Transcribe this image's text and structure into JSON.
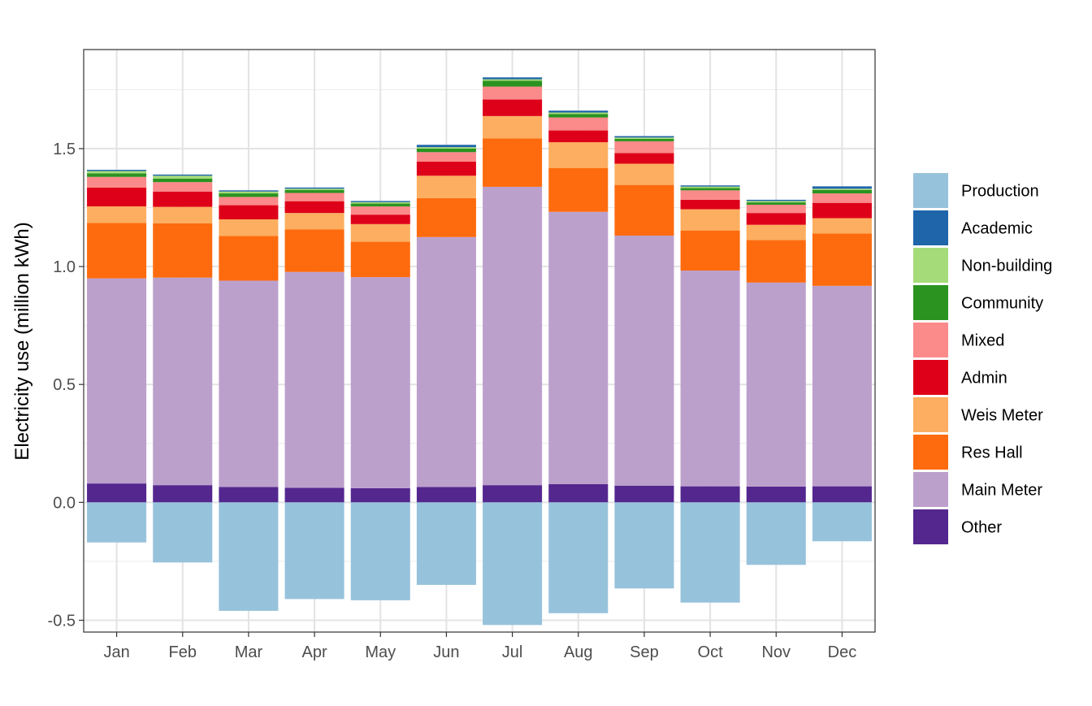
{
  "chart_data": {
    "type": "bar",
    "stacked": true,
    "title": "",
    "xlabel": "",
    "ylabel": "Electricity use (million kWh)",
    "ylim": [
      -0.55,
      1.92
    ],
    "yticks": [
      -0.5,
      0.0,
      0.5,
      1.0,
      1.5
    ],
    "ytick_labels": [
      "-0.5",
      "0.0",
      "0.5",
      "1.0",
      "1.5"
    ],
    "grid": true,
    "legend_position": "right",
    "categories": [
      "Jan",
      "Feb",
      "Mar",
      "Apr",
      "May",
      "Jun",
      "Jul",
      "Aug",
      "Sep",
      "Oct",
      "Nov",
      "Dec"
    ],
    "series": [
      {
        "name": "Other",
        "color": "#54278f",
        "values": [
          0.08,
          0.073,
          0.065,
          0.062,
          0.06,
          0.065,
          0.073,
          0.077,
          0.071,
          0.068,
          0.067,
          0.068
        ]
      },
      {
        "name": "Main Meter",
        "color": "#bca0cc",
        "values": [
          0.87,
          0.88,
          0.875,
          0.915,
          0.895,
          1.06,
          1.265,
          1.155,
          1.06,
          0.915,
          0.865,
          0.85
        ]
      },
      {
        "name": "Res Hall",
        "color": "#fd6b0e",
        "values": [
          0.235,
          0.23,
          0.19,
          0.18,
          0.15,
          0.165,
          0.205,
          0.185,
          0.215,
          0.17,
          0.18,
          0.222
        ]
      },
      {
        "name": "Weis Meter",
        "color": "#fdae60",
        "values": [
          0.07,
          0.07,
          0.07,
          0.07,
          0.075,
          0.095,
          0.095,
          0.11,
          0.09,
          0.09,
          0.065,
          0.065
        ]
      },
      {
        "name": "Admin",
        "color": "#de0019",
        "values": [
          0.08,
          0.065,
          0.06,
          0.05,
          0.04,
          0.06,
          0.07,
          0.05,
          0.045,
          0.04,
          0.05,
          0.065
        ]
      },
      {
        "name": "Mixed",
        "color": "#fb8a8a",
        "values": [
          0.045,
          0.04,
          0.035,
          0.035,
          0.035,
          0.04,
          0.055,
          0.055,
          0.05,
          0.04,
          0.035,
          0.04
        ]
      },
      {
        "name": "Community",
        "color": "#2b9320",
        "values": [
          0.015,
          0.015,
          0.015,
          0.012,
          0.012,
          0.015,
          0.025,
          0.015,
          0.01,
          0.01,
          0.01,
          0.015
        ]
      },
      {
        "name": "Non-building",
        "color": "#a5db78",
        "values": [
          0.01,
          0.012,
          0.008,
          0.006,
          0.006,
          0.006,
          0.006,
          0.006,
          0.006,
          0.006,
          0.006,
          0.005
        ]
      },
      {
        "name": "Academic",
        "color": "#1f65aa",
        "values": [
          0.005,
          0.005,
          0.005,
          0.005,
          0.005,
          0.01,
          0.008,
          0.008,
          0.006,
          0.005,
          0.005,
          0.01
        ]
      },
      {
        "name": "Production",
        "color": "#97c2dc",
        "values": [
          -0.17,
          -0.255,
          -0.46,
          -0.41,
          -0.415,
          -0.35,
          -0.52,
          -0.47,
          -0.365,
          -0.425,
          -0.265,
          -0.165
        ]
      }
    ],
    "legend": [
      "Production",
      "Academic",
      "Non-building",
      "Community",
      "Mixed",
      "Admin",
      "Weis Meter",
      "Res Hall",
      "Main Meter",
      "Other"
    ]
  }
}
